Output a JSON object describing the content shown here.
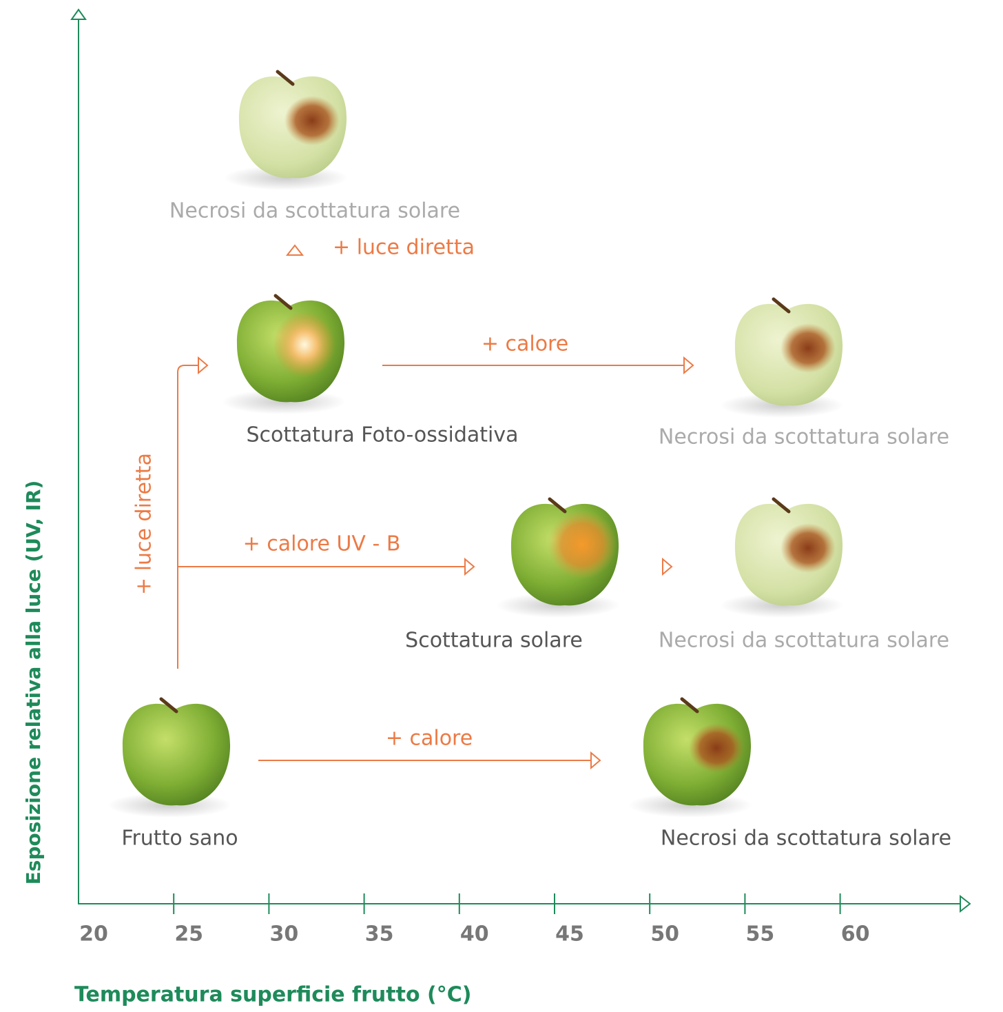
{
  "axes": {
    "y_title": "Esposizione relativa alla luce (UV, IR)",
    "x_title": "Temperatura superficie frutto (°C)",
    "x_ticks": [
      20,
      25,
      30,
      35,
      40,
      45,
      50,
      55,
      60
    ]
  },
  "nodes": [
    {
      "label": "Necrosi da scottatura solare"
    },
    {
      "label": "Scottatura Foto-ossidativa"
    },
    {
      "label": "Necrosi da scottatura solare"
    },
    {
      "label": "Scottatura solare"
    },
    {
      "label": "Necrosi da scottatura solare"
    },
    {
      "label": "Frutto sano"
    },
    {
      "label": "Necrosi da scottatura solare"
    }
  ],
  "arrows": [
    {
      "label": "+ luce diretta"
    },
    {
      "label": "+ calore"
    },
    {
      "label": "+ luce diretta"
    },
    {
      "label": "+ calore UV - B"
    },
    {
      "label": "+ calore"
    }
  ]
}
